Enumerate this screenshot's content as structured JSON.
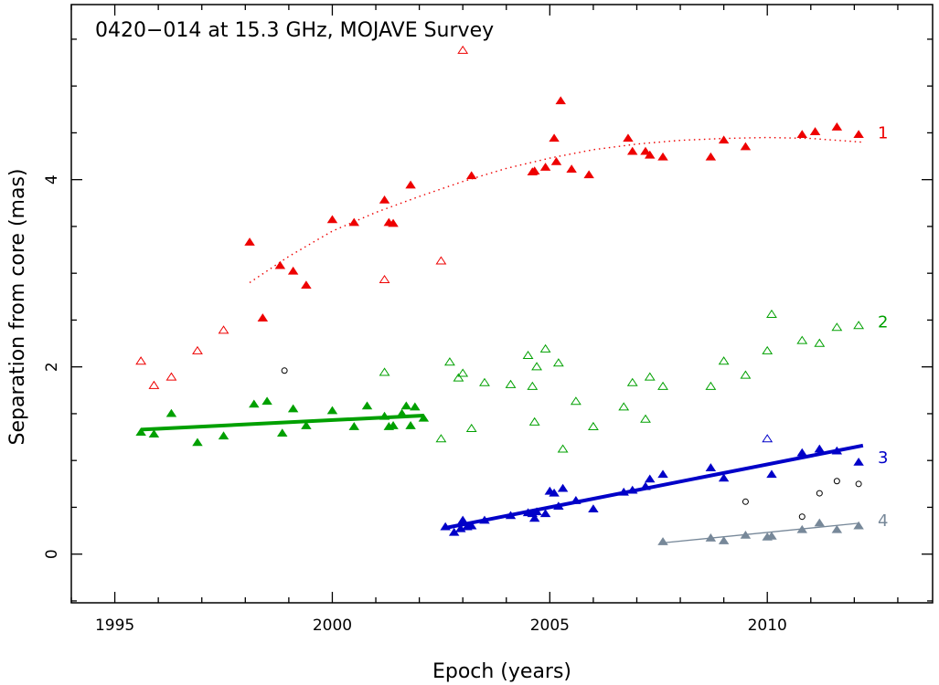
{
  "chart_data": {
    "type": "scatter",
    "title": "0420−014 at 15.3 GHz, MOJAVE Survey",
    "xlabel": "Epoch (years)",
    "ylabel": "Separation from core (mas)",
    "xlim": [
      1994.0,
      2013.8
    ],
    "ylim": [
      -0.52,
      5.87
    ],
    "xticks": [
      1995,
      2000,
      2005,
      2010
    ],
    "yticks": [
      0,
      2,
      4
    ],
    "grid": false,
    "legend": "none",
    "series": [
      {
        "label": "1",
        "color": "#ee0000",
        "filled": [
          [
            1998.1,
            3.33
          ],
          [
            1998.4,
            2.52
          ],
          [
            1998.8,
            3.08
          ],
          [
            1999.1,
            3.02
          ],
          [
            1999.4,
            2.87
          ],
          [
            2000.0,
            3.57
          ],
          [
            2000.5,
            3.54
          ],
          [
            2001.2,
            3.78
          ],
          [
            2001.3,
            3.54
          ],
          [
            2001.4,
            3.53
          ],
          [
            2001.8,
            3.94
          ],
          [
            2003.2,
            4.04
          ],
          [
            2004.6,
            4.08
          ],
          [
            2004.65,
            4.09
          ],
          [
            2004.9,
            4.13
          ],
          [
            2005.1,
            4.44
          ],
          [
            2005.15,
            4.19
          ],
          [
            2005.25,
            4.84
          ],
          [
            2005.5,
            4.11
          ],
          [
            2005.9,
            4.05
          ],
          [
            2006.8,
            4.44
          ],
          [
            2006.9,
            4.3
          ],
          [
            2007.2,
            4.3
          ],
          [
            2007.3,
            4.26
          ],
          [
            2007.6,
            4.24
          ],
          [
            2008.7,
            4.24
          ],
          [
            2009.0,
            4.42
          ],
          [
            2009.5,
            4.35
          ],
          [
            2010.8,
            4.48
          ],
          [
            2011.1,
            4.51
          ],
          [
            2011.6,
            4.56
          ],
          [
            2012.1,
            4.48
          ]
        ],
        "open": [
          [
            1995.6,
            2.06
          ],
          [
            1995.9,
            1.8
          ],
          [
            1996.3,
            1.89
          ],
          [
            1996.9,
            2.17
          ],
          [
            1997.5,
            2.39
          ],
          [
            2001.2,
            2.93
          ],
          [
            2002.5,
            3.13
          ],
          [
            2003.0,
            5.38
          ]
        ],
        "fit": [
          [
            1998.1,
            2.9
          ],
          [
            1999,
            3.18
          ],
          [
            2000,
            3.45
          ],
          [
            2001,
            3.65
          ],
          [
            2002,
            3.82
          ],
          [
            2003,
            3.98
          ],
          [
            2004,
            4.12
          ],
          [
            2005,
            4.23
          ],
          [
            2006,
            4.32
          ],
          [
            2007,
            4.38
          ],
          [
            2008,
            4.42
          ],
          [
            2009,
            4.44
          ],
          [
            2010,
            4.45
          ],
          [
            2011,
            4.44
          ],
          [
            2012.2,
            4.4
          ]
        ],
        "fit_style": "dotted"
      },
      {
        "label": "2",
        "color": "#00a000",
        "filled": [
          [
            1995.6,
            1.3
          ],
          [
            1995.9,
            1.28
          ],
          [
            1996.3,
            1.5
          ],
          [
            1996.9,
            1.19
          ],
          [
            1997.5,
            1.26
          ],
          [
            1998.2,
            1.6
          ],
          [
            1998.5,
            1.63
          ],
          [
            1998.85,
            1.29
          ],
          [
            1999.1,
            1.55
          ],
          [
            1999.4,
            1.37
          ],
          [
            2000.0,
            1.53
          ],
          [
            2000.5,
            1.36
          ],
          [
            2000.8,
            1.58
          ],
          [
            2001.2,
            1.47
          ],
          [
            2001.3,
            1.36
          ],
          [
            2001.4,
            1.37
          ],
          [
            2001.6,
            1.5
          ],
          [
            2001.7,
            1.58
          ],
          [
            2001.8,
            1.37
          ],
          [
            2001.9,
            1.57
          ],
          [
            2002.1,
            1.45
          ]
        ],
        "open": [
          [
            2001.2,
            1.94
          ],
          [
            2002.5,
            1.23
          ],
          [
            2002.7,
            2.05
          ],
          [
            2002.9,
            1.88
          ],
          [
            2003.0,
            1.93
          ],
          [
            2003.2,
            1.34
          ],
          [
            2003.5,
            1.83
          ],
          [
            2004.1,
            1.81
          ],
          [
            2004.5,
            2.12
          ],
          [
            2004.6,
            1.79
          ],
          [
            2004.65,
            1.41
          ],
          [
            2004.7,
            2.0
          ],
          [
            2004.9,
            2.19
          ],
          [
            2005.2,
            2.04
          ],
          [
            2005.3,
            1.12
          ],
          [
            2005.6,
            1.63
          ],
          [
            2006.0,
            1.36
          ],
          [
            2006.7,
            1.57
          ],
          [
            2006.9,
            1.83
          ],
          [
            2007.2,
            1.44
          ],
          [
            2007.3,
            1.89
          ],
          [
            2007.6,
            1.79
          ],
          [
            2008.7,
            1.79
          ],
          [
            2009.0,
            2.06
          ],
          [
            2009.5,
            1.91
          ],
          [
            2010.0,
            2.17
          ],
          [
            2010.1,
            2.56
          ],
          [
            2010.8,
            2.28
          ],
          [
            2011.2,
            2.25
          ],
          [
            2011.6,
            2.42
          ],
          [
            2012.1,
            2.44
          ]
        ],
        "fit": [
          [
            1995.6,
            1.33
          ],
          [
            2002.1,
            1.48
          ]
        ],
        "fit_style": "thick"
      },
      {
        "label": "3",
        "color": "#0000c8",
        "filled": [
          [
            2002.6,
            0.29
          ],
          [
            2002.8,
            0.23
          ],
          [
            2002.95,
            0.27
          ],
          [
            2003.0,
            0.36
          ],
          [
            2003.1,
            0.29
          ],
          [
            2003.2,
            0.3
          ],
          [
            2003.5,
            0.36
          ],
          [
            2004.1,
            0.41
          ],
          [
            2004.5,
            0.44
          ],
          [
            2004.6,
            0.43
          ],
          [
            2004.65,
            0.38
          ],
          [
            2004.7,
            0.45
          ],
          [
            2004.9,
            0.43
          ],
          [
            2005.0,
            0.67
          ],
          [
            2005.1,
            0.65
          ],
          [
            2005.2,
            0.51
          ],
          [
            2005.3,
            0.7
          ],
          [
            2005.6,
            0.57
          ],
          [
            2006.0,
            0.48
          ],
          [
            2006.7,
            0.66
          ],
          [
            2006.9,
            0.68
          ],
          [
            2007.2,
            0.72
          ],
          [
            2007.3,
            0.8
          ],
          [
            2007.6,
            0.85
          ],
          [
            2008.7,
            0.92
          ],
          [
            2009.0,
            0.81
          ],
          [
            2010.1,
            0.85
          ],
          [
            2010.8,
            1.08
          ],
          [
            2011.2,
            1.12
          ],
          [
            2011.6,
            1.1
          ],
          [
            2012.1,
            0.98
          ]
        ],
        "open": [
          [
            2010.0,
            1.23
          ]
        ],
        "fit": [
          [
            2002.6,
            0.28
          ],
          [
            2012.2,
            1.16
          ]
        ],
        "fit_style": "thick"
      },
      {
        "label": "4",
        "color": "#778899",
        "filled": [
          [
            2007.6,
            0.13
          ],
          [
            2008.7,
            0.17
          ],
          [
            2009.0,
            0.14
          ],
          [
            2009.5,
            0.2
          ],
          [
            2010.0,
            0.18
          ],
          [
            2010.1,
            0.19
          ],
          [
            2010.8,
            0.26
          ],
          [
            2011.2,
            0.33
          ],
          [
            2011.6,
            0.26
          ],
          [
            2012.1,
            0.3
          ]
        ],
        "open": [],
        "fit": [
          [
            2007.6,
            0.12
          ],
          [
            2012.1,
            0.33
          ]
        ],
        "fit_style": "thin"
      },
      {
        "label": "",
        "color": "#000000",
        "marker": "circle",
        "open": [
          [
            1998.9,
            1.96
          ],
          [
            2009.5,
            0.56
          ],
          [
            2010.8,
            0.4
          ],
          [
            2011.2,
            0.65
          ],
          [
            2011.6,
            0.78
          ],
          [
            2012.1,
            0.75
          ]
        ]
      }
    ]
  }
}
